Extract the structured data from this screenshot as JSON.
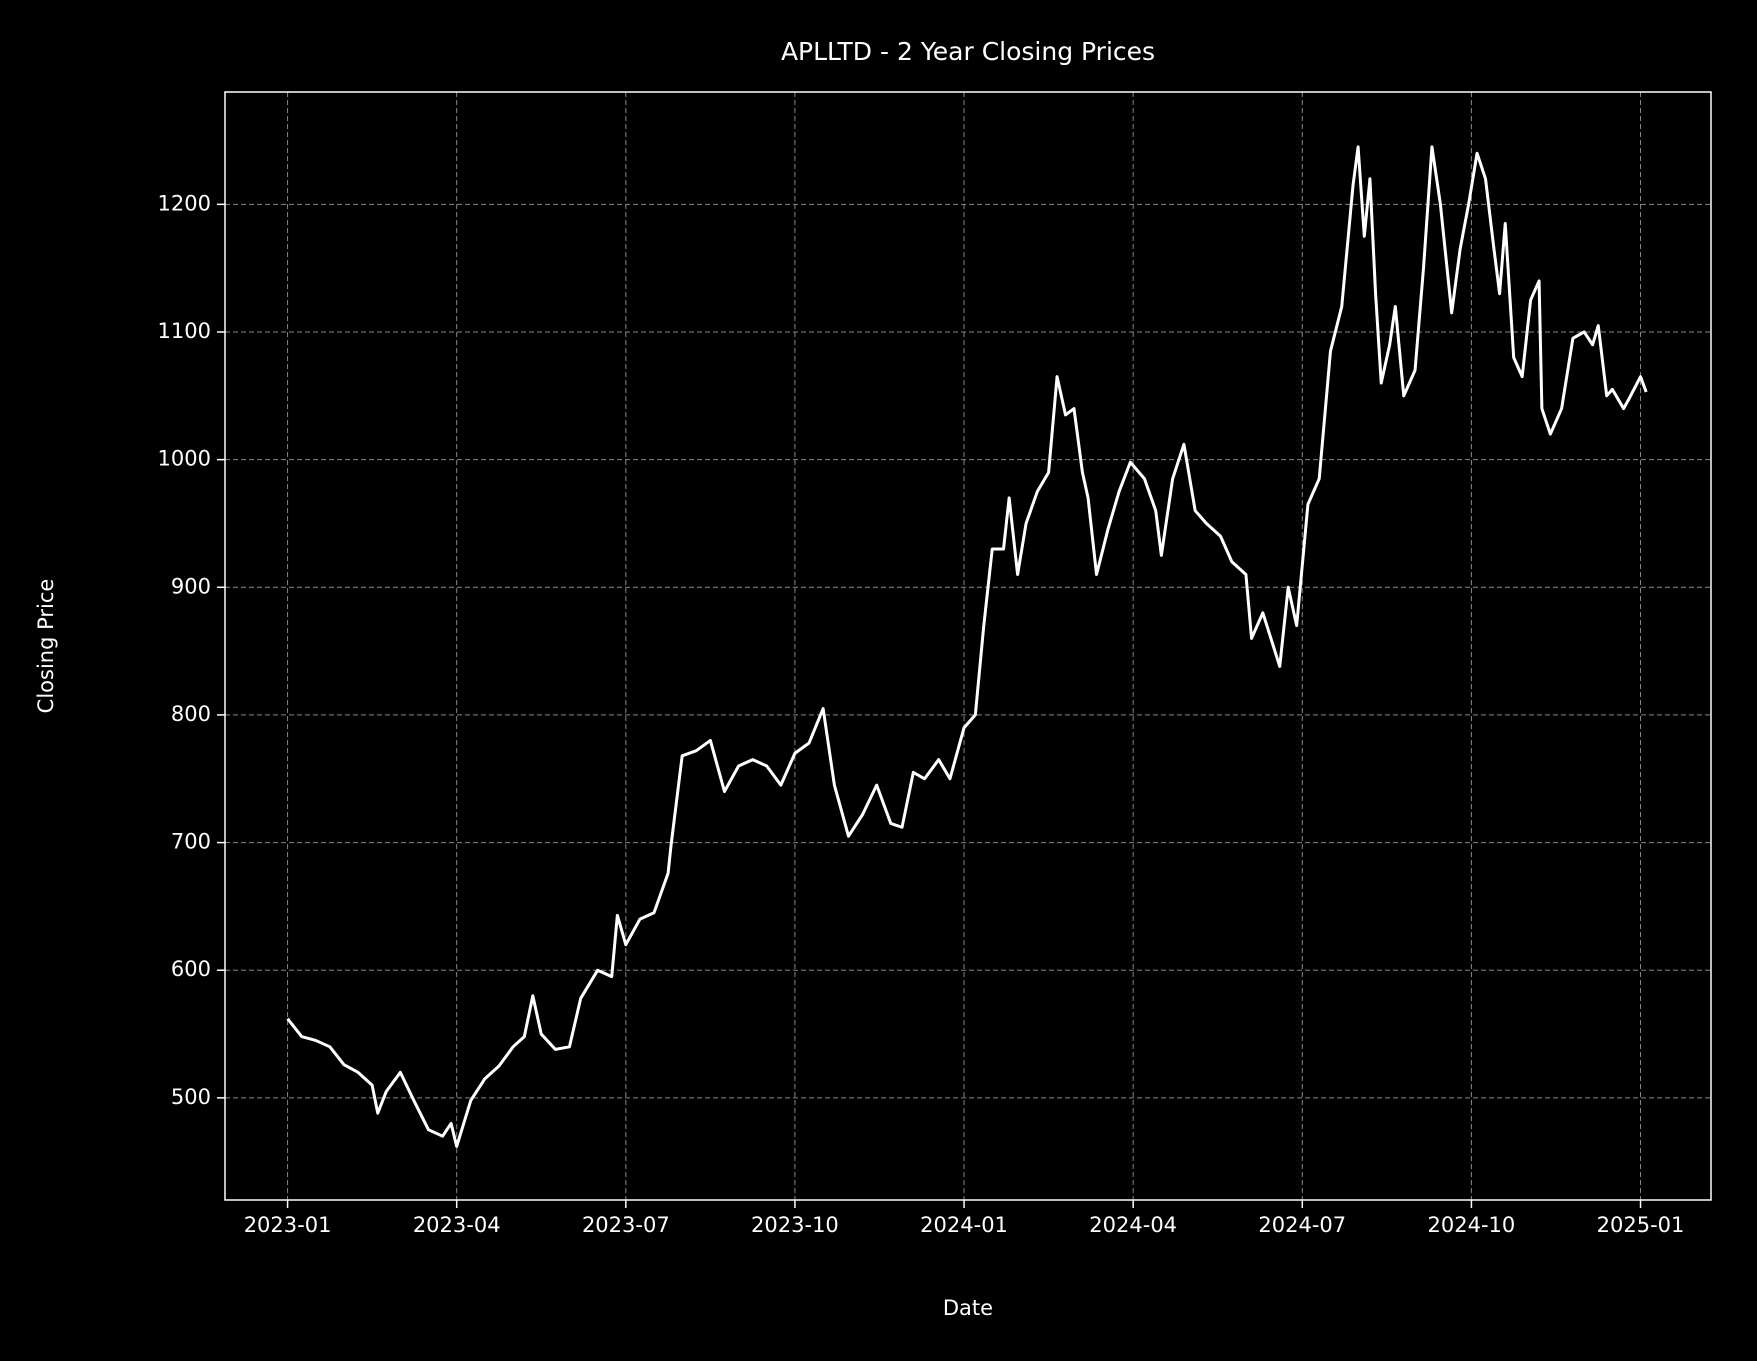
{
  "chart_data": {
    "type": "line",
    "title": "APLLTD - 2 Year Closing Prices",
    "x_label": "Date",
    "y_label": "Closing Price",
    "x": [
      0,
      0.25,
      0.5,
      0.75,
      1,
      1.25,
      1.5,
      1.6,
      1.75,
      2,
      2.25,
      2.5,
      2.75,
      2.9,
      3,
      3.25,
      3.5,
      3.75,
      4,
      4.2,
      4.35,
      4.5,
      4.75,
      5,
      5.2,
      5.5,
      5.75,
      5.85,
      6,
      6.25,
      6.5,
      6.75,
      6.8,
      7,
      7.25,
      7.5,
      7.75,
      8,
      8.25,
      8.5,
      8.75,
      9,
      9.25,
      9.5,
      9.7,
      9.95,
      10.2,
      10.45,
      10.7,
      10.9,
      11.1,
      11.3,
      11.55,
      11.75,
      12,
      12.2,
      12.35,
      12.5,
      12.7,
      12.8,
      12.95,
      13.1,
      13.3,
      13.5,
      13.65,
      13.8,
      13.95,
      14.1,
      14.2,
      14.35,
      14.55,
      14.75,
      14.95,
      15.2,
      15.4,
      15.5,
      15.7,
      15.9,
      16.1,
      16.3,
      16.55,
      16.75,
      17,
      17.1,
      17.3,
      17.6,
      17.75,
      17.9,
      18.1,
      18.3,
      18.5,
      18.7,
      18.9,
      18.99,
      19.1,
      19.2,
      19.3,
      19.4,
      19.55,
      19.65,
      19.8,
      20,
      20.15,
      20.3,
      20.45,
      20.65,
      20.8,
      20.95,
      21.1,
      21.25,
      21.4,
      21.5,
      21.6,
      21.75,
      21.9,
      22.05,
      22.2,
      22.25,
      22.4,
      22.6,
      22.8,
      23,
      23.15,
      23.25,
      23.4,
      23.5,
      23.7,
      23.8,
      24,
      24.1
    ],
    "series": [
      {
        "name": "Close",
        "color": "#ffffff",
        "values": [
          562,
          548,
          545,
          540,
          526,
          520,
          510,
          488,
          505,
          520,
          497,
          475,
          470,
          480,
          462,
          498,
          515,
          525,
          540,
          548,
          580,
          550,
          538,
          540,
          578,
          600,
          595,
          643,
          620,
          640,
          645,
          676,
          697,
          768,
          772,
          780,
          740,
          760,
          765,
          760,
          745,
          770,
          778,
          805,
          745,
          705,
          722,
          745,
          715,
          712,
          755,
          750,
          765,
          750,
          790,
          800,
          870,
          930,
          930,
          970,
          910,
          950,
          975,
          990,
          1065,
          1035,
          1040,
          990,
          970,
          910,
          945,
          975,
          998,
          985,
          960,
          925,
          985,
          1012,
          960,
          950,
          940,
          920,
          910,
          860,
          880,
          838,
          900,
          870,
          965,
          985,
          1085,
          1120,
          1215,
          1245,
          1175,
          1220,
          1130,
          1060,
          1090,
          1120,
          1050,
          1070,
          1150,
          1245,
          1200,
          1115,
          1165,
          1200,
          1240,
          1220,
          1165,
          1130,
          1185,
          1080,
          1065,
          1125,
          1140,
          1040,
          1020,
          1040,
          1095,
          1100,
          1090,
          1105,
          1050,
          1055,
          1040,
          1048,
          1065,
          1053
        ]
      }
    ],
    "xlim": [
      -1.11,
      25.25
    ],
    "xticks": [
      {
        "value": 0,
        "label": "2023-01"
      },
      {
        "value": 3,
        "label": "2023-04"
      },
      {
        "value": 6,
        "label": "2023-07"
      },
      {
        "value": 9,
        "label": "2023-10"
      },
      {
        "value": 12,
        "label": "2024-01"
      },
      {
        "value": 15,
        "label": "2024-04"
      },
      {
        "value": 18,
        "label": "2024-07"
      },
      {
        "value": 21,
        "label": "2024-10"
      },
      {
        "value": 24,
        "label": "2025-01"
      }
    ],
    "ylim": [
      420,
      1288
    ],
    "yticks": [
      500,
      600,
      700,
      800,
      900,
      1000,
      1100,
      1200
    ],
    "grid": true
  }
}
